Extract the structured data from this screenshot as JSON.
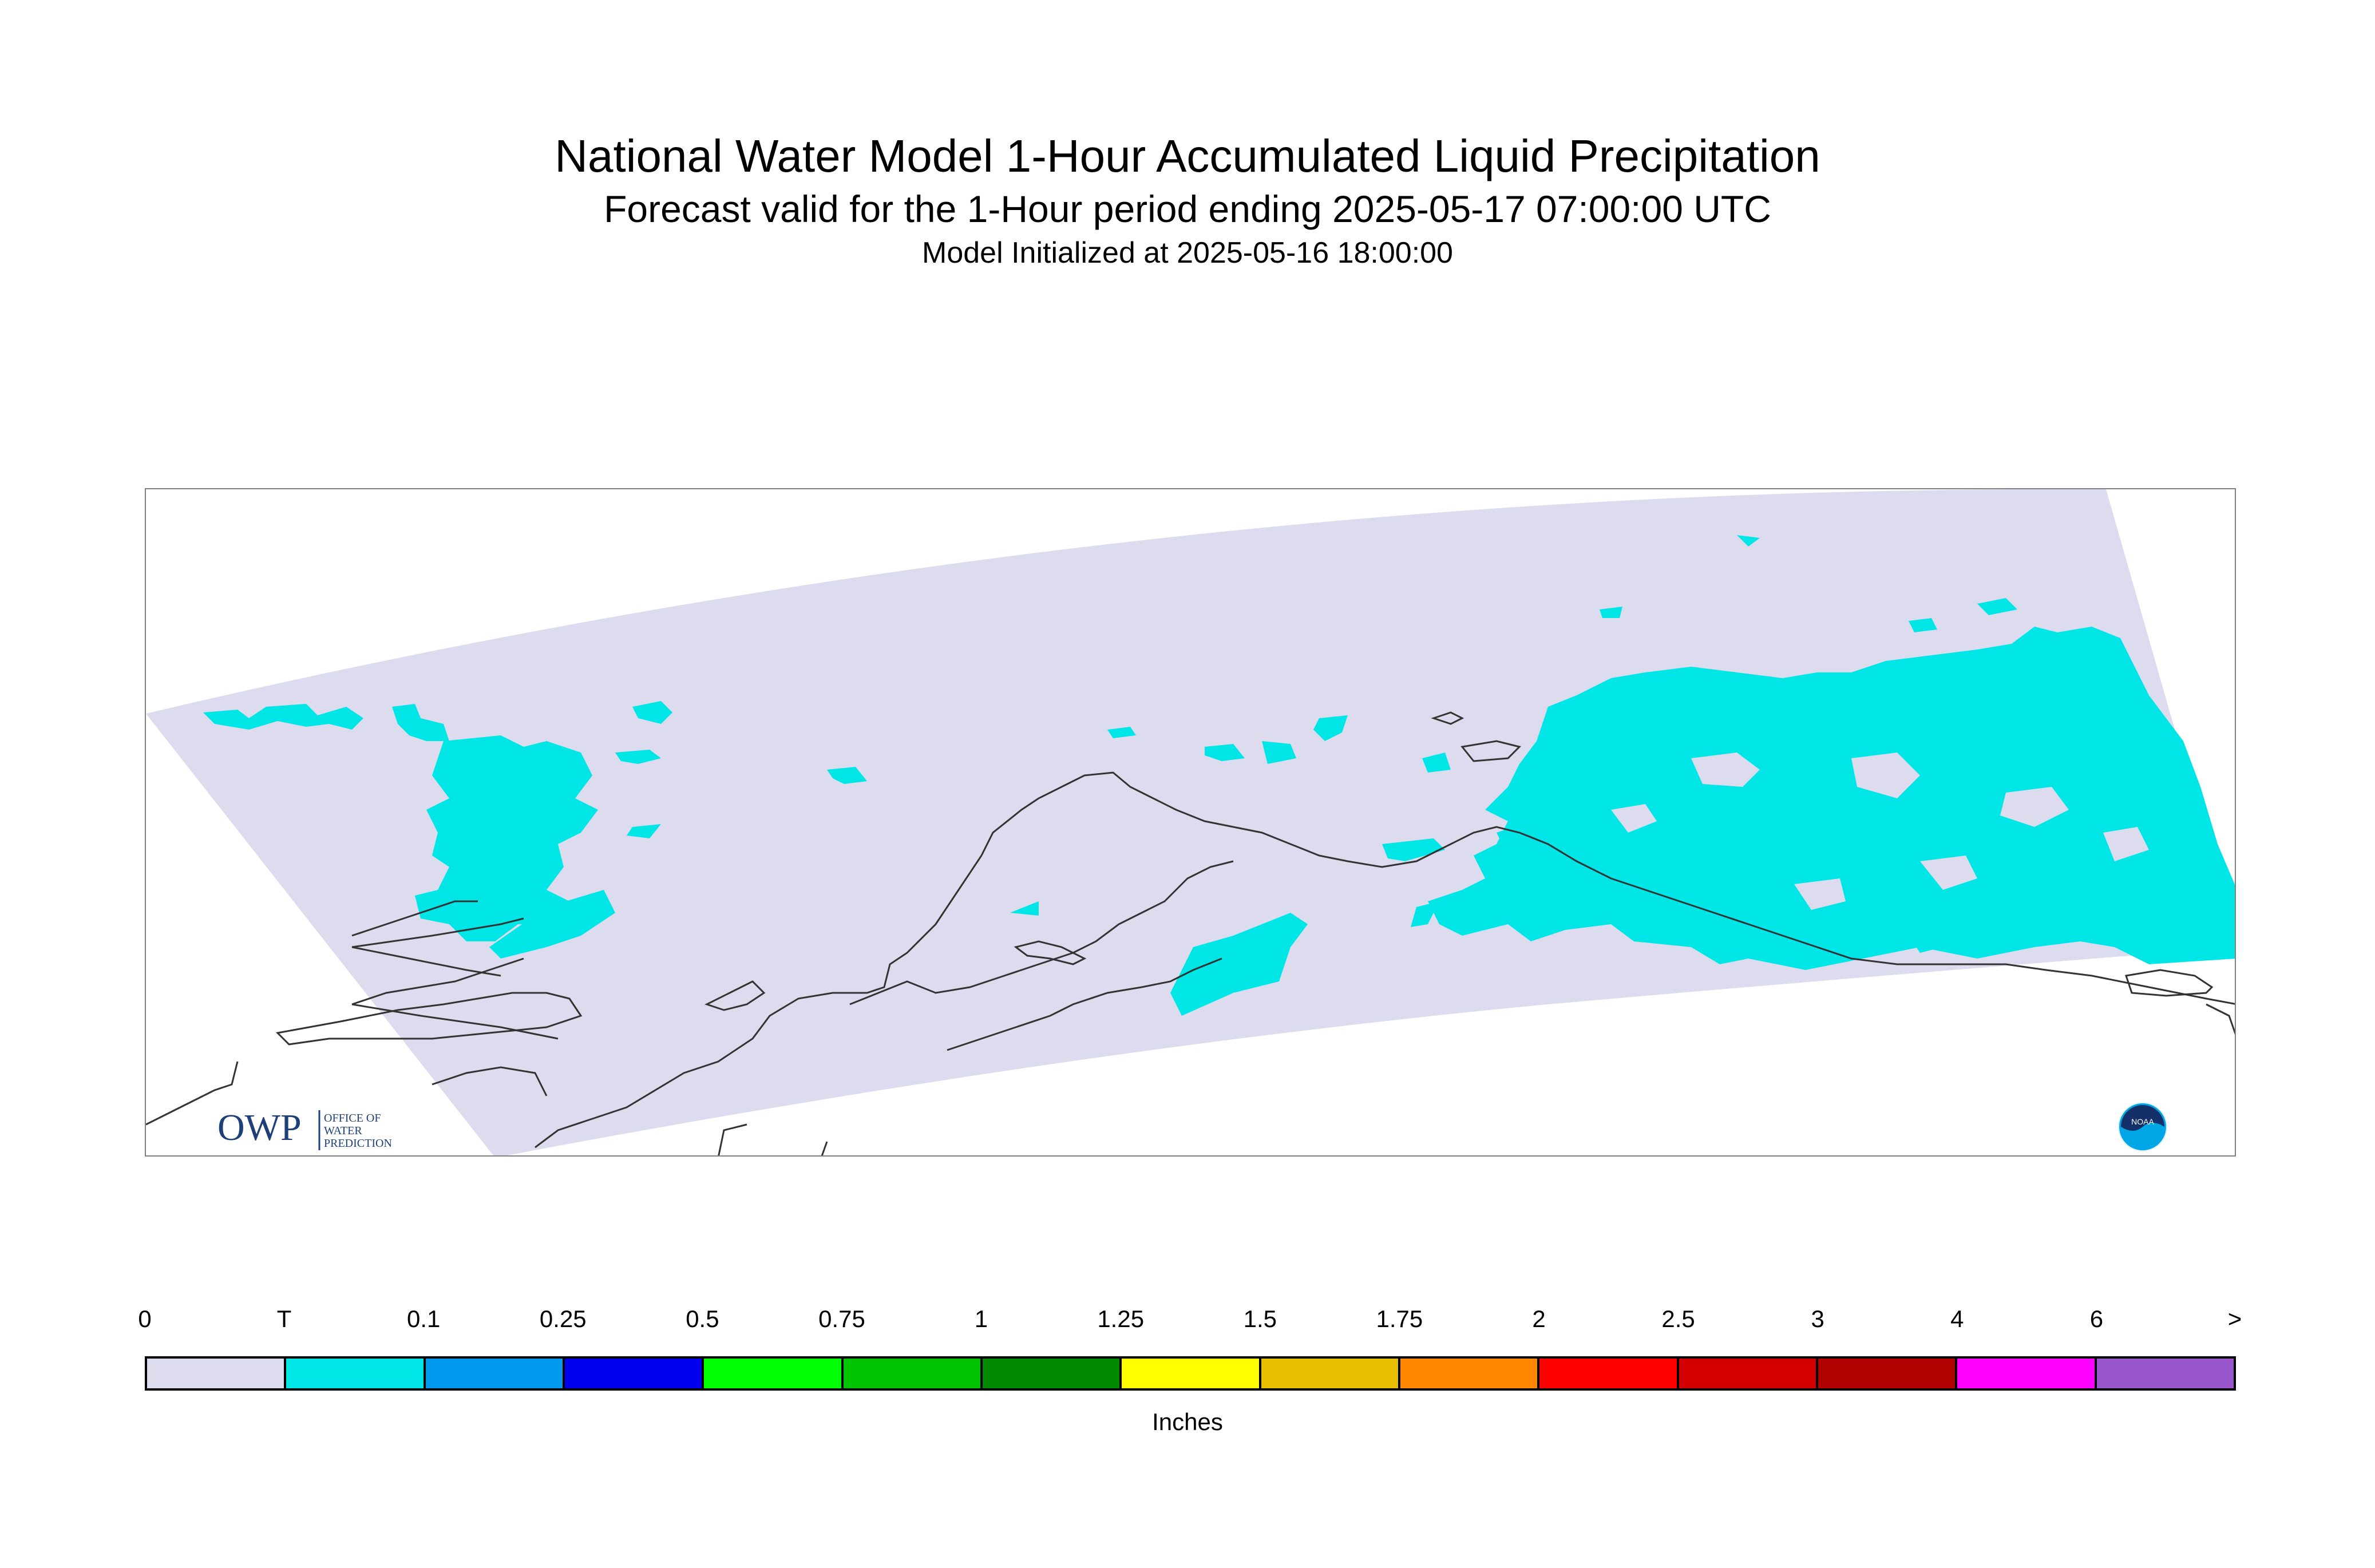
{
  "header": {
    "title": "National Water Model 1-Hour Accumulated Liquid Precipitation",
    "subtitle": "Forecast valid for the 1-Hour period ending 2025-05-17 07:00:00 UTC",
    "init": "Model Initialized at 2025-05-16 18:00:00"
  },
  "map": {
    "domain_color": "#dcdcee",
    "trace_color": "#00e5e5",
    "coast_color": "#333333",
    "owp_logo_text": "OWP",
    "owp_logo_sub": [
      "OFFICE OF",
      "WATER",
      "PREDICTION"
    ],
    "noaa_logo_text": "NOAA"
  },
  "legend": {
    "labels": [
      "0",
      "T",
      "0.1",
      "0.25",
      "0.5",
      "0.75",
      "1",
      "1.25",
      "1.5",
      "1.75",
      "2",
      "2.5",
      "3",
      "4",
      "6",
      ">"
    ],
    "colors": [
      "#dcdcee",
      "#00e5e5",
      "#0099ee",
      "#0000ee",
      "#00ff00",
      "#00c400",
      "#008800",
      "#ffff00",
      "#e5bf00",
      "#ff8800",
      "#ff0000",
      "#d40000",
      "#b00000",
      "#ff00ff",
      "#9955cc"
    ],
    "units": "Inches"
  }
}
